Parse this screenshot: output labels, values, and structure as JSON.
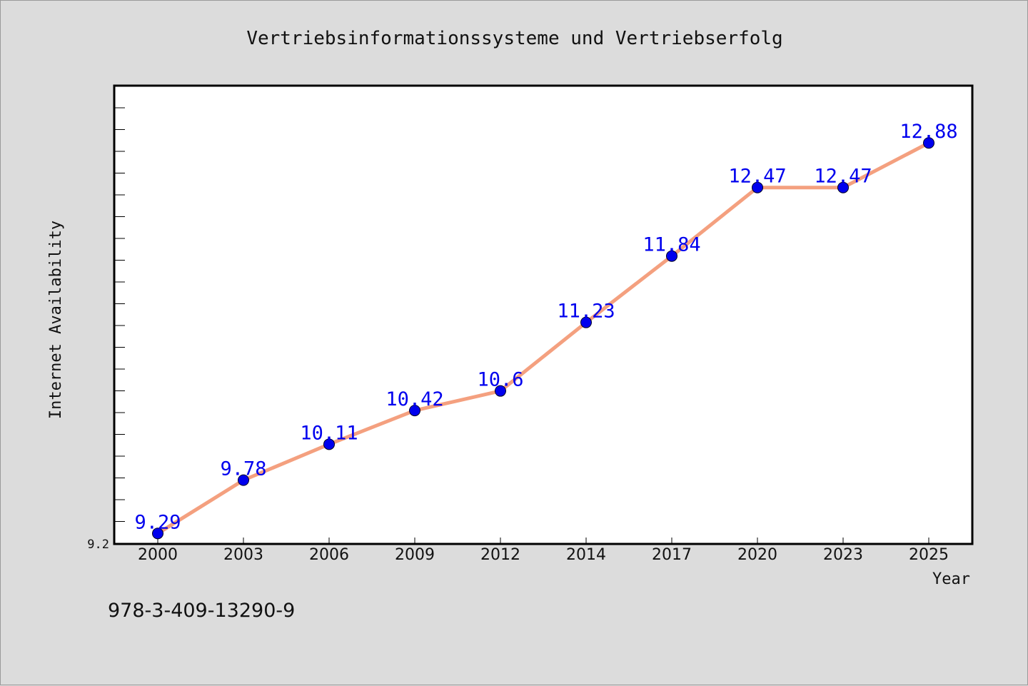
{
  "chart_data": {
    "type": "line",
    "title": "Vertriebsinformationssysteme und Vertriebserfolg",
    "xlabel": "Year",
    "ylabel": "Internet Availability",
    "categories": [
      "2000",
      "2003",
      "2006",
      "2009",
      "2012",
      "2014",
      "2017",
      "2020",
      "2023",
      "2025"
    ],
    "values": [
      9.29,
      9.78,
      10.11,
      10.42,
      10.6,
      11.23,
      11.84,
      12.47,
      12.47,
      12.88
    ],
    "value_labels": [
      "9.29",
      "9.78",
      "10.11",
      "10.42",
      "10.6",
      "11.23",
      "11.84",
      "12.47",
      "12.47",
      "12.88"
    ],
    "ylim": [
      9.2,
      13.4
    ],
    "y_tick_label": "9.2",
    "grid": false,
    "line_color": "#f4a07f",
    "marker_color": "#0000ee",
    "label_color": "#0000ee"
  },
  "footer": {
    "isbn": "978-3-409-13290-9"
  }
}
